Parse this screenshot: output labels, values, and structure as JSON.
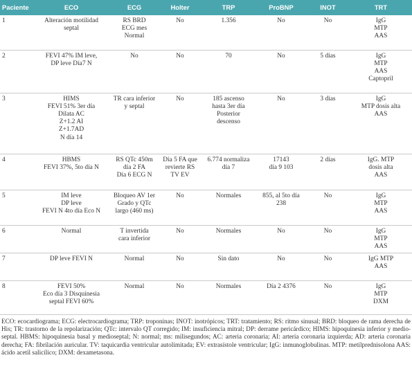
{
  "table": {
    "header": [
      "Paciente",
      "ECO",
      "ECG",
      "Holter",
      "TRP",
      "ProBNP",
      "INOT",
      "TRT"
    ],
    "rows": [
      [
        "1",
        "Alteración motilidad\nseptal",
        "RS BRD\nECG mes\nNormal",
        "No",
        "1.356",
        "No",
        "No",
        "IgG\nMTP\nAAS"
      ],
      [
        "2",
        "FEVI 47% IM leve,\nDP leve Día7 N",
        "No",
        "No",
        "70",
        "No",
        "5 días",
        "IgG\nMTP\nAAS\nCaptopril"
      ],
      [
        "3",
        "HIMS\nFEVI 51% 3er día\nDilata AC\nZ+1.2 AI\nZ+1.7AD\nN día 14",
        "TR cara inferior\ny septal",
        "No",
        "185 ascenso\nhasta 3er día\nPosterior\ndescenso",
        "No",
        "3 días",
        "IgG\nMTP dosis alta\nAAS"
      ],
      [
        "4",
        "HBMS\nFEVI 37%, 5to día N",
        "RS QTc 450m\ndía 2 FA\nDía 6 ECG N",
        "Día 5 FA que\nrevierte RS\nTV EV",
        "6.774 normaliza\ndía 7",
        "17143\ndía 9 103",
        "2 días",
        "IgG. MTP\ndosis alta\nAAS"
      ],
      [
        "5",
        "IM leve\nDP leve\nFEVI N 4to día Eco N",
        "Bloqueo AV 1er\nGrado y QTc\nlargo (460 ms)",
        "No",
        "Normales",
        "855, al 5to día\n238",
        "No",
        "IgG\nMTP\nAAS"
      ],
      [
        "6",
        "Normal",
        "T invertida\ncara inferior",
        "No",
        "Normales",
        "No",
        "No",
        "IgG\nMTP\nAAS"
      ],
      [
        "7",
        "DP leve FEVI N",
        "Normal",
        "No",
        "Sin dato",
        "No",
        "No",
        "IgG MTP\nAAS"
      ],
      [
        "8",
        "FEVI 50%\nEco día 3 Disquinesia\nseptal FEVI 60%",
        "Normal",
        "No",
        "Normales",
        "Día 2 4376",
        "No",
        "IgG\nMTP\nDXM"
      ]
    ]
  },
  "footnote": "ECO: ecocardiograma; ECG: electrocardiograma; TRP: troponinas; INOT: inotrópicos; TRT: tratamiento; RS: ritmo sinusal; BRD: bloqueo de rama derecha de His; TR: trastorno de la repolarización; QTc: intervalo QT corregido; IM: insuficiencia mitral; DP: derrame pericárdico; HIMS: hipoquinesia inferior y medio-septal. HBMS: hipoquinesia basal y medioseptal; N: normal; ms: milisegundos; AC: arteria coronaria; AI: arteria coronaria izquierda; AD: arteria coronaria derecha; FA: fibrilación auricular. TV: taquicardia ventricular autolimitada; EV: extrasístole ventricular; IgG: inmunoglobulinas. MTP: metilprednisolona AAS: ácido acetil salicílico; DXM: dexametasona."
}
